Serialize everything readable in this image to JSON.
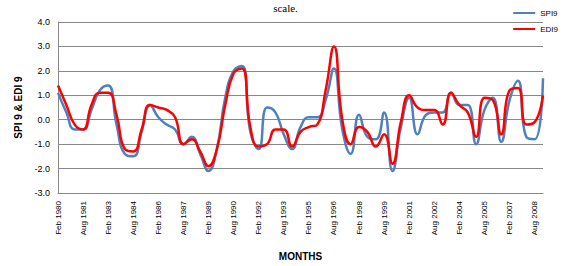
{
  "chart_data": {
    "type": "line",
    "title": "scale.",
    "x_label": "MONTHS",
    "y_label": "SPI 9 & EDI 9",
    "categories": [
      "Feb 1980",
      null,
      null,
      "Aug 1981",
      null,
      null,
      "Feb 1983",
      null,
      null,
      "Aug 1984",
      null,
      null,
      "Feb 1986",
      null,
      null,
      "Aug 1987",
      null,
      null,
      "Feb 1989",
      null,
      null,
      "Aug 1990",
      null,
      null,
      "Feb 1992",
      null,
      null,
      "Aug 1993",
      null,
      null,
      "Feb 1995",
      null,
      null,
      "Aug 1996",
      null,
      null,
      "Feb 1998",
      null,
      null,
      "Aug 1999",
      null,
      null,
      "Feb 2001",
      null,
      null,
      "Aug 2002",
      null,
      null,
      "Feb 2004",
      null,
      null,
      "Aug 2005",
      null,
      null,
      "Feb 2007",
      null,
      null,
      "Aug 2008",
      null
    ],
    "series": [
      {
        "name": "SPI9",
        "color": "#4f81bd",
        "values": [
          1.1,
          0.3,
          -0.4,
          -0.4,
          0.4,
          1.2,
          1.4,
          -0.2,
          -1.4,
          -1.5,
          -0.5,
          0.6,
          0.1,
          -0.2,
          -0.4,
          -1.0,
          -0.7,
          -1.4,
          -2.1,
          -1.2,
          0.9,
          2.0,
          2.2,
          -0.5,
          -1.2,
          0.5,
          0.3,
          -0.6,
          -1.2,
          -0.3,
          0.1,
          0.1,
          0.8,
          2.1,
          -0.4,
          -1.4,
          0.2,
          -0.7,
          -0.8,
          0.3,
          -2.1,
          -0.3,
          0.9,
          -0.6,
          0.2,
          0.3,
          0.3,
          1.1,
          0.6,
          0.6,
          -1.0,
          0.4,
          0.9,
          -0.9,
          0.8,
          1.6,
          -0.7,
          -0.8,
          1.7
        ]
      },
      {
        "name": "EDI9",
        "color": "#ff0000",
        "values": [
          1.4,
          0.6,
          -0.2,
          -0.4,
          0.6,
          1.1,
          1.1,
          0.2,
          -1.2,
          -1.3,
          -0.4,
          0.6,
          0.5,
          0.4,
          0.1,
          -1.0,
          -0.8,
          -1.3,
          -1.9,
          -1.2,
          0.6,
          1.9,
          2.1,
          -0.3,
          -1.1,
          -1.0,
          -0.4,
          -0.4,
          -1.1,
          -0.5,
          -0.3,
          -0.2,
          1.2,
          3.0,
          0.0,
          -1.0,
          -0.3,
          -0.5,
          -1.1,
          -0.6,
          -1.8,
          -0.1,
          1.0,
          0.5,
          0.4,
          0.4,
          -0.2,
          1.1,
          0.6,
          0.3,
          -0.7,
          0.9,
          0.8,
          -0.6,
          1.2,
          1.3,
          -0.2,
          -0.1,
          1.0
        ]
      }
    ],
    "ylim": [
      -3,
      4
    ],
    "yticks": [
      {
        "value": -3,
        "label": "-3.0"
      },
      {
        "value": -2,
        "label": "-2.0"
      },
      {
        "value": -1,
        "label": "-1.0"
      },
      {
        "value": 0,
        "label": "0.0"
      },
      {
        "value": 1,
        "label": "1.0"
      },
      {
        "value": 2,
        "label": "2.0"
      },
      {
        "value": 3,
        "label": "3.0"
      },
      {
        "value": 4,
        "label": "4.0"
      }
    ],
    "grid": true,
    "legend": "top-right",
    "marker": "none",
    "line_style": "solid"
  }
}
